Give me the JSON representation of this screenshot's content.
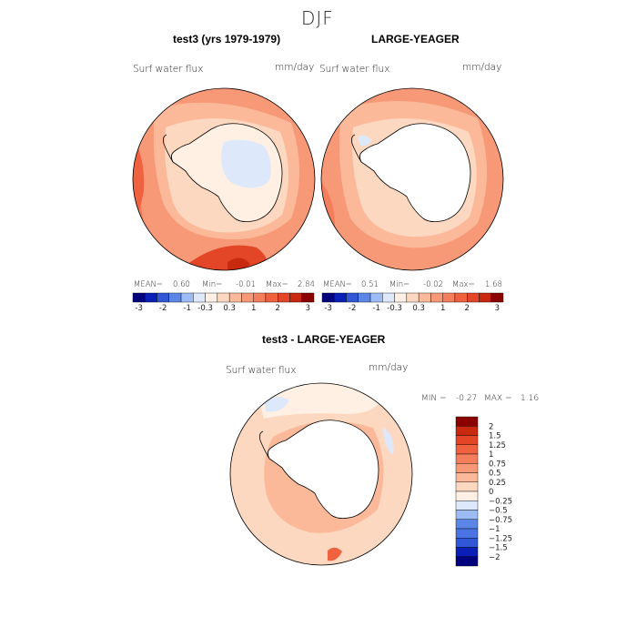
{
  "page_title": "DJF",
  "colors": {
    "neg3": "#00007f",
    "neg2": "#0a1fb5",
    "neg1": "#2f57d6",
    "neg03": "#5b86e8",
    "neg_small": "#9dbcf3",
    "zero_low": "#dde9fb",
    "zero_high": "#fff0e3",
    "pos03": "#fdd8c0",
    "pos05": "#fbb99a",
    "pos075": "#f79877",
    "pos1": "#f47e5c",
    "pos125": "#f0623f",
    "pos15": "#e34627",
    "pos2": "#c9290f",
    "pos3": "#8b0000",
    "land": "#ffffff",
    "coast": "#000000"
  },
  "panels": [
    {
      "title": "test3 (yrs 1979-1979)",
      "variable": "Surf water flux",
      "units": "mm/day",
      "stats": {
        "mean_label": "MEAN=",
        "mean": "0.60",
        "min_label": "Min=",
        "min": "-0.01",
        "max_label": "Max=",
        "max": "2.84"
      }
    },
    {
      "title": "LARGE-YEAGER",
      "variable": "Surf water flux",
      "units": "mm/day",
      "stats": {
        "mean_label": "MEAN=",
        "mean": "0.51",
        "min_label": "Min=",
        "min": "-0.02",
        "max_label": "Max=",
        "max": "1.68"
      }
    }
  ],
  "diff_panel": {
    "title": "test3 - LARGE-YEAGER",
    "variable": "Surf water flux",
    "units": "mm/day",
    "min_label": "MIN =",
    "min": "-0.27",
    "max_label": "MAX =",
    "max": "1.16"
  },
  "chart_data": [
    {
      "type": "heatmap",
      "title": "test3 (yrs 1979-1979)",
      "projection": "south polar stereographic",
      "variable": "Surf water flux",
      "units": "mm/day",
      "mean": 0.6,
      "min": -0.01,
      "max": 2.84,
      "colorbar_levels": [
        -3,
        -2,
        -1,
        -0.3,
        0.3,
        1,
        2,
        3
      ],
      "colorbar_tick_labels": [
        "-3",
        "-2",
        "-1",
        "-0.3",
        "0.3",
        "1",
        "2",
        "3"
      ]
    },
    {
      "type": "heatmap",
      "title": "LARGE-YEAGER",
      "projection": "south polar stereographic",
      "variable": "Surf water flux",
      "units": "mm/day",
      "mean": 0.51,
      "min": -0.02,
      "max": 1.68,
      "colorbar_levels": [
        -3,
        -2,
        -1,
        -0.3,
        0.3,
        1,
        2,
        3
      ],
      "colorbar_tick_labels": [
        "-3",
        "-2",
        "-1",
        "-0.3",
        "0.3",
        "1",
        "2",
        "3"
      ]
    },
    {
      "type": "heatmap",
      "title": "test3 - LARGE-YEAGER",
      "projection": "south polar stereographic",
      "variable": "Surf water flux",
      "units": "mm/day",
      "min": -0.27,
      "max": 1.16,
      "colorbar_levels": [
        2,
        1.5,
        1.25,
        1,
        0.75,
        0.5,
        0.25,
        0,
        -0.25,
        -0.5,
        -0.75,
        -1,
        -1.25,
        -1.5,
        -2
      ],
      "colorbar_tick_labels": [
        "2",
        "1.5",
        "1.25",
        "1",
        "0.75",
        "0.5",
        "0.25",
        "0",
        "−0.25",
        "−0.5",
        "−0.75",
        "−1",
        "−1.25",
        "−1.5",
        "−2"
      ]
    }
  ]
}
